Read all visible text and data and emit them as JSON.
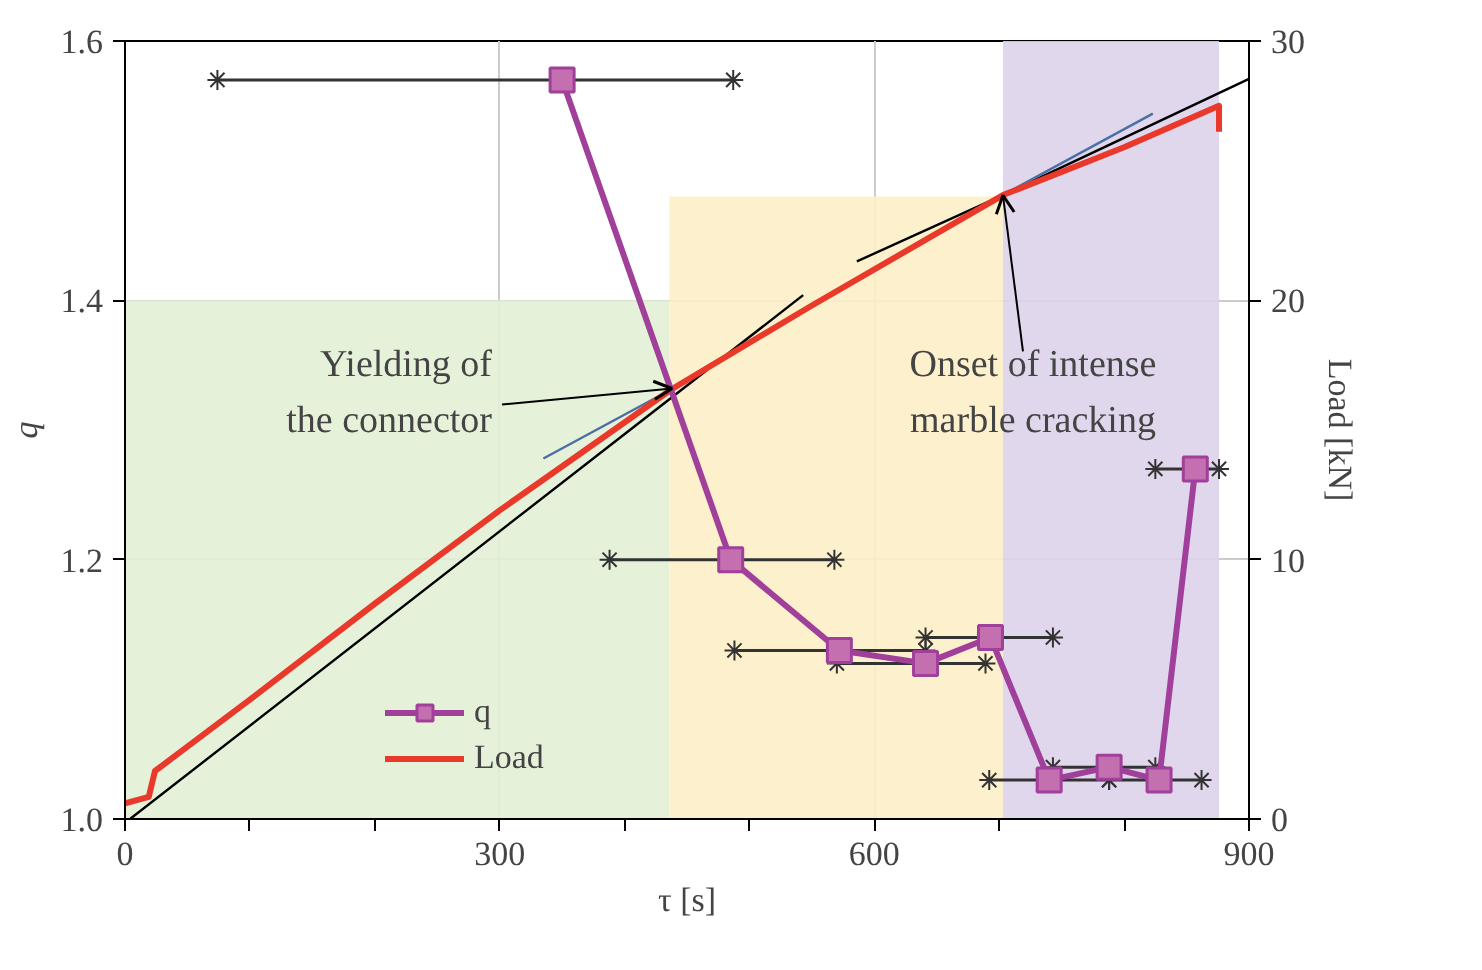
{
  "chart_data": {
    "type": "line",
    "xlabel": "τ [s]",
    "ylabel": "q",
    "y2label": "Load [kN]",
    "xlim": [
      0,
      900
    ],
    "xticks": [
      0,
      {
        "value": 100,
        "label": null
      },
      {
        "value": 200,
        "label": null
      },
      300,
      {
        "value": 400,
        "label": null
      },
      {
        "value": 500,
        "label": null
      },
      600,
      {
        "value": 700,
        "label": null
      },
      {
        "value": 800,
        "label": null
      },
      900
    ],
    "ylim": [
      1.0,
      1.6
    ],
    "yticks": [
      {
        "value": 1.0,
        "label": "1.0"
      },
      {
        "value": 1.2,
        "label": "1.2"
      },
      {
        "value": 1.4,
        "label": "1.4"
      },
      {
        "value": 1.6,
        "label": "1.6"
      }
    ],
    "y2lim": [
      0,
      30
    ],
    "y2ticks": [
      0,
      10,
      20,
      30
    ],
    "grid": true,
    "legend": "bottom left",
    "line_style": "solid",
    "series": [
      {
        "type": "area",
        "color": "#e3efd6",
        "x": [
          0,
          436
        ],
        "values": [
          1.4,
          1.4
        ]
      },
      {
        "type": "area",
        "color": "#fdf0c8",
        "x": [
          436,
          703
        ],
        "values": [
          1.48,
          1.48
        ]
      },
      {
        "type": "area",
        "color": "#ddd3ea",
        "x": [
          703,
          876
        ],
        "values": [
          1.6,
          1.6
        ]
      },
      {
        "type": "line",
        "axis": "y2",
        "color": "#000000",
        "x": [
          4,
          543
        ],
        "values": [
          0,
          20.2
        ]
      },
      {
        "type": "line",
        "axis": "y2",
        "color": "#000000",
        "x": [
          586,
          703,
          900
        ],
        "values": [
          21.5,
          24.06,
          28.54
        ]
      },
      {
        "type": "line",
        "axis": "y2",
        "color": "#4a6fa5",
        "x": [
          335,
          438
        ],
        "values": [
          13.9,
          16.58
        ]
      },
      {
        "type": "line",
        "axis": "y2",
        "color": "#4a6fa5",
        "x": [
          703,
          823
        ],
        "values": [
          24.06,
          27.2
        ]
      },
      {
        "name": "Load",
        "type": "line",
        "axis": "y2",
        "color": "#e8392a",
        "x": [
          0,
          19,
          24,
          100,
          200,
          300,
          438,
          550,
          703,
          800,
          876,
          876
        ],
        "values": [
          0.6,
          0.85,
          1.85,
          4.6,
          8.3,
          11.9,
          16.58,
          19.8,
          24.06,
          25.9,
          27.5,
          26.5
        ]
      },
      {
        "name": "q",
        "type": "line",
        "color": "#a0409a",
        "marker": "square",
        "x": [
          350,
          485,
          572,
          641,
          693,
          740,
          788,
          828,
          857
        ],
        "values": [
          1.57,
          1.2,
          1.13,
          1.12,
          1.14,
          1.03,
          1.04,
          1.03,
          1.27
        ],
        "xerrors": [
          [
            74,
            487
          ],
          [
            388,
            568
          ],
          [
            488,
            641
          ],
          [
            570,
            689
          ],
          [
            641,
            743
          ],
          [
            692,
            788
          ],
          [
            743,
            825
          ],
          [
            788,
            862
          ],
          [
            825,
            876
          ]
        ]
      }
    ],
    "annotations": [
      {
        "text": "Yielding of the connector",
        "x": 438,
        "y": 1.332
      },
      {
        "text": "Onset of intense marble cracking",
        "x": 703,
        "y": 1.481
      }
    ]
  }
}
